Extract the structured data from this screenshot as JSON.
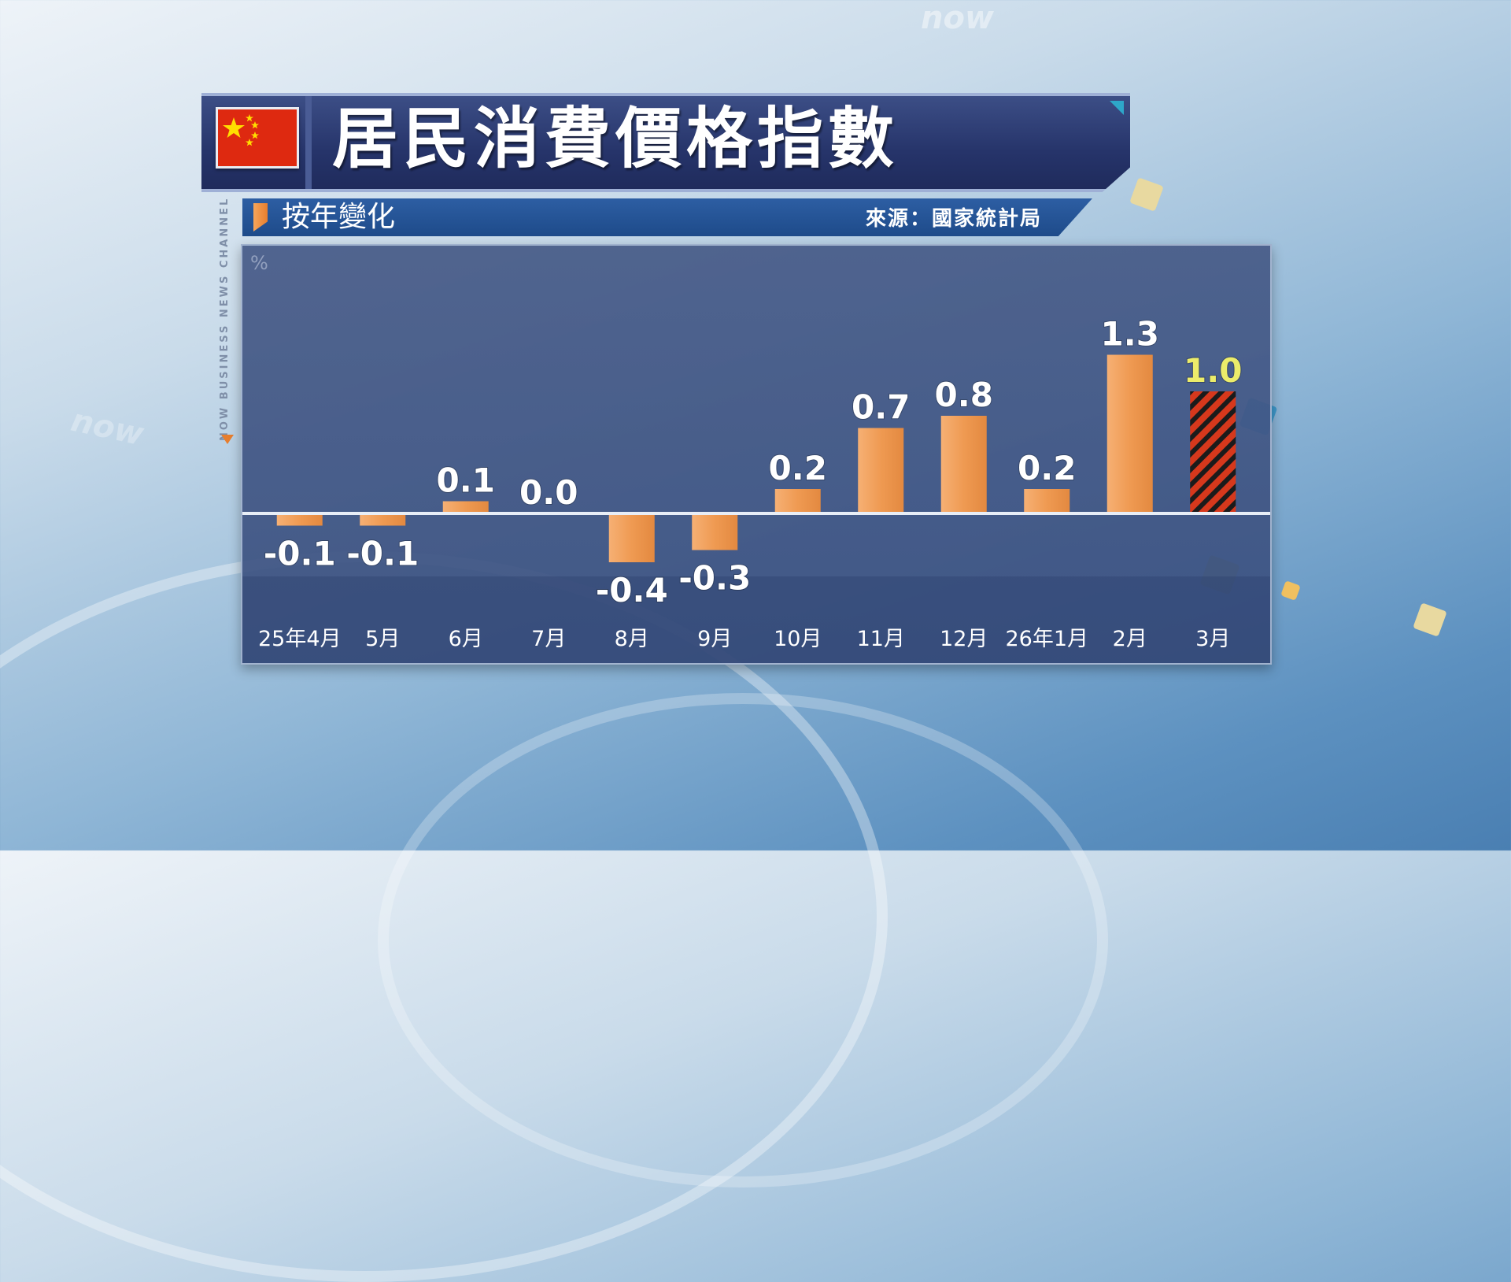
{
  "header": {
    "title": "居民消費價格指數",
    "subtitle": "按年變化",
    "source": "來源：國家統計局",
    "side_brand": "NOW BUSINESS NEWS CHANNEL",
    "watermark": "now"
  },
  "colors": {
    "bar": "#ef9a52",
    "highlight_bar": "#d6381c",
    "highlight_stripe": "#1b1b1b",
    "label": "#ffffff",
    "highlight_label": "#ecec6a",
    "panel": "#465a87"
  },
  "chart_data": {
    "type": "bar",
    "title": "居民消費價格指數",
    "subtitle": "按年變化",
    "ylabel": "%",
    "xlabel": "",
    "categories": [
      "25年4月",
      "5月",
      "6月",
      "7月",
      "8月",
      "9月",
      "10月",
      "11月",
      "12月",
      "26年1月",
      "2月",
      "3月"
    ],
    "values": [
      -0.1,
      -0.1,
      0.1,
      0.0,
      -0.4,
      -0.3,
      0.2,
      0.7,
      0.8,
      0.2,
      1.3,
      1.0
    ],
    "value_labels": [
      "-0.1",
      "-0.1",
      "0.1",
      "0.0",
      "-0.4",
      "-0.3",
      "0.2",
      "0.7",
      "0.8",
      "0.2",
      "1.3",
      "1.0"
    ],
    "highlight_index": 11,
    "ylim": [
      -0.5,
      1.6
    ],
    "grid": false,
    "legend": "none"
  }
}
